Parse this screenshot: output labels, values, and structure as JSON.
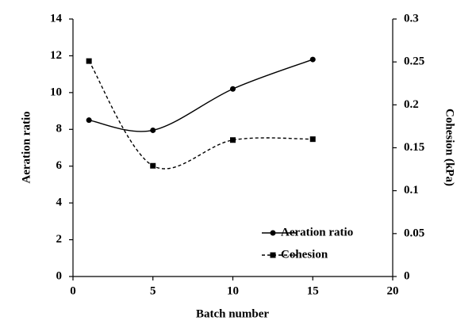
{
  "chart_data": {
    "type": "line",
    "xlabel": "Batch number",
    "ylabel": "Aeration ratio",
    "y2label": "Cohesion (kPa)",
    "x": [
      1,
      5,
      10,
      15
    ],
    "series": [
      {
        "name": "Aeration ratio",
        "color": "#000000",
        "linestyle": "solid",
        "marker": "circle",
        "values": [
          8.5,
          7.95,
          10.2,
          11.8
        ]
      },
      {
        "name": "Cohesion",
        "color": "#000000",
        "linestyle": "dashed",
        "marker": "square",
        "axis": "y2",
        "values": [
          0.251,
          0.129,
          0.159,
          0.16
        ]
      }
    ],
    "smooth": true,
    "xlim": [
      0,
      20
    ],
    "xticks": [
      0,
      5,
      10,
      15,
      20
    ],
    "ylim": [
      0,
      14
    ],
    "yticks": [
      0,
      2,
      4,
      6,
      8,
      10,
      12,
      14
    ],
    "y2lim": [
      0,
      0.3
    ],
    "y2ticks": [
      0,
      0.05,
      0.1,
      0.15,
      0.2,
      0.25,
      0.3
    ],
    "legend": "lower right"
  }
}
